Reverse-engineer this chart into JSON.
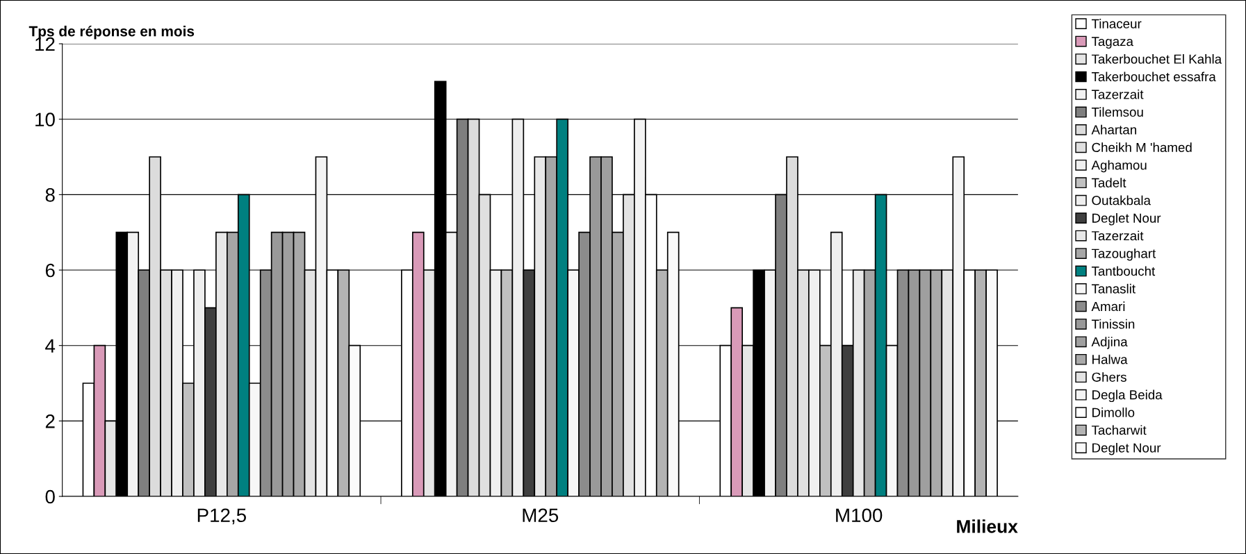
{
  "chart_data": {
    "type": "bar",
    "ylabel": "Tps de réponse en mois",
    "xlabel": "Milieux",
    "categories": [
      "P12,5",
      "M25",
      "M100"
    ],
    "ylim": [
      0,
      12
    ],
    "yticks": [
      0,
      2,
      4,
      6,
      8,
      10,
      12
    ],
    "grid": "y",
    "legend": "right",
    "series": [
      {
        "name": "Tinaceur",
        "color": "#ffffff",
        "values": [
          3,
          6,
          4
        ]
      },
      {
        "name": "Tagaza",
        "color": "#d99ab8",
        "values": [
          4,
          7,
          5
        ]
      },
      {
        "name": "Takerbouchet El Kahla",
        "color": "#e6e6e6",
        "values": [
          2,
          6,
          4
        ]
      },
      {
        "name": "Takerbouchet essafra",
        "color": "#000000",
        "values": [
          7,
          11,
          6
        ]
      },
      {
        "name": "Tazerzait",
        "color": "#f2f2f2",
        "values": [
          7,
          7,
          6
        ]
      },
      {
        "name": "Tilemsou",
        "color": "#7f7f7f",
        "values": [
          6,
          10,
          8
        ]
      },
      {
        "name": "Ahartan",
        "color": "#dcdcdc",
        "values": [
          9,
          10,
          9
        ]
      },
      {
        "name": "Cheikh M 'hamed",
        "color": "#e0e0e0",
        "values": [
          6,
          8,
          6
        ]
      },
      {
        "name": "Aghamou",
        "color": "#f0f0f0",
        "values": [
          6,
          6,
          6
        ]
      },
      {
        "name": "Tadelt",
        "color": "#c0c0c0",
        "values": [
          3,
          6,
          4
        ]
      },
      {
        "name": "Outakbala",
        "color": "#eeeeee",
        "values": [
          6,
          10,
          7
        ]
      },
      {
        "name": "Deglet Nour",
        "color": "#3f3f3f",
        "values": [
          5,
          6,
          4
        ]
      },
      {
        "name": "Tazerzait",
        "color": "#e8e8e8",
        "values": [
          7,
          9,
          6
        ]
      },
      {
        "name": "Tazoughart",
        "color": "#a6a6a6",
        "values": [
          7,
          9,
          6
        ]
      },
      {
        "name": "Tantboucht",
        "color": "#008080",
        "values": [
          8,
          10,
          8
        ]
      },
      {
        "name": "Tanaslit",
        "color": "#f7f7f7",
        "values": [
          3,
          6,
          4
        ]
      },
      {
        "name": "Amari",
        "color": "#8c8c8c",
        "values": [
          6,
          7,
          6
        ]
      },
      {
        "name": "Tinissin",
        "color": "#999999",
        "values": [
          7,
          9,
          6
        ]
      },
      {
        "name": "Adjina",
        "color": "#9f9f9f",
        "values": [
          7,
          9,
          6
        ]
      },
      {
        "name": "Halwa",
        "color": "#a9a9a9",
        "values": [
          7,
          7,
          6
        ]
      },
      {
        "name": "Ghers",
        "color": "#e3e3e3",
        "values": [
          6,
          8,
          6
        ]
      },
      {
        "name": "Degla Beida",
        "color": "#f4f4f4",
        "values": [
          9,
          10,
          9
        ]
      },
      {
        "name": "Dimollo",
        "color": "#ffffff",
        "values": [
          6,
          8,
          6
        ]
      },
      {
        "name": "Tacharwit",
        "color": "#b3b3b3",
        "values": [
          6,
          6,
          6
        ]
      },
      {
        "name": "Deglet Nour",
        "color": "#fafafa",
        "values": [
          4,
          7,
          6
        ]
      }
    ]
  }
}
